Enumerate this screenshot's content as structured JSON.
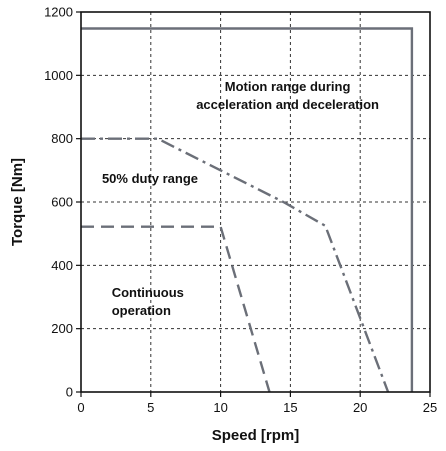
{
  "chart_data": {
    "type": "line",
    "xlabel": "Speed [rpm]",
    "ylabel": "Torque [Nm]",
    "xlim": [
      0,
      25
    ],
    "ylim": [
      0,
      1200
    ],
    "xticks": [
      "0",
      "5",
      "10",
      "15",
      "20",
      "25"
    ],
    "yticks": [
      "0",
      "200",
      "400",
      "600",
      "800",
      "1000",
      "1200"
    ],
    "grid": true,
    "annotations": [
      {
        "lines": [
          "Motion range during",
          "acceleration and deceleration"
        ]
      },
      {
        "lines": [
          "50% duty range"
        ]
      },
      {
        "lines": [
          "Continuous",
          "operation"
        ]
      }
    ],
    "series": [
      {
        "style": "solid",
        "color": "#6b6f78",
        "points": [
          [
            0,
            1148
          ],
          [
            23.7,
            1148
          ],
          [
            23.7,
            0
          ]
        ]
      },
      {
        "style": "dashdot",
        "color": "#6b6f78",
        "points": [
          [
            0,
            800
          ],
          [
            5.5,
            800
          ],
          [
            14.5,
            600
          ],
          [
            17.5,
            525
          ],
          [
            22,
            0
          ]
        ]
      },
      {
        "style": "dashed",
        "color": "#6b6f78",
        "points": [
          [
            0,
            522
          ],
          [
            10,
            522
          ],
          [
            13.5,
            0
          ]
        ]
      }
    ]
  }
}
